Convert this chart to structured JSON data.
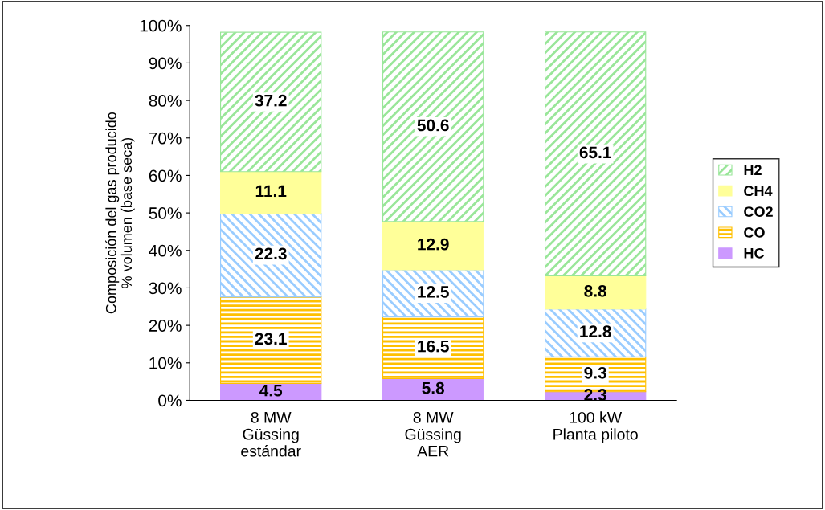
{
  "chart_data": {
    "type": "bar",
    "stacked": true,
    "ylabel": "Composición del gas producido\n% volumen (base seca)",
    "categories": [
      "8 MW\nGüssing\nestándar",
      "8 MW\nGüssing\nAER",
      "100 kW\nPlanta piloto"
    ],
    "series": [
      {
        "name": "HC",
        "color": "#cc99ff",
        "values": [
          4.5,
          5.8,
          2.3
        ]
      },
      {
        "name": "CO",
        "color": "#ffc000",
        "values": [
          23.1,
          16.5,
          9.3
        ]
      },
      {
        "name": "CO2",
        "color": "#99ccff",
        "values": [
          22.3,
          12.5,
          12.8
        ]
      },
      {
        "name": "CH4",
        "color": "#ffff99",
        "values": [
          11.1,
          12.9,
          8.8
        ]
      },
      {
        "name": "H2",
        "color": "#99e699",
        "values": [
          37.2,
          50.6,
          65.1
        ]
      }
    ],
    "data_labels": true,
    "ylim": [
      0,
      100
    ],
    "yticks": [
      {
        "value": 0,
        "label": "0%"
      },
      {
        "value": 10,
        "label": "10%"
      },
      {
        "value": 20,
        "label": "20%"
      },
      {
        "value": 30,
        "label": "30%"
      },
      {
        "value": 40,
        "label": "40%"
      },
      {
        "value": 50,
        "label": "50%"
      },
      {
        "value": 60,
        "label": "60%"
      },
      {
        "value": 70,
        "label": "70%"
      },
      {
        "value": 80,
        "label": "80%"
      },
      {
        "value": 90,
        "label": "90%"
      },
      {
        "value": 100,
        "label": "100%"
      }
    ],
    "legend": "right"
  }
}
